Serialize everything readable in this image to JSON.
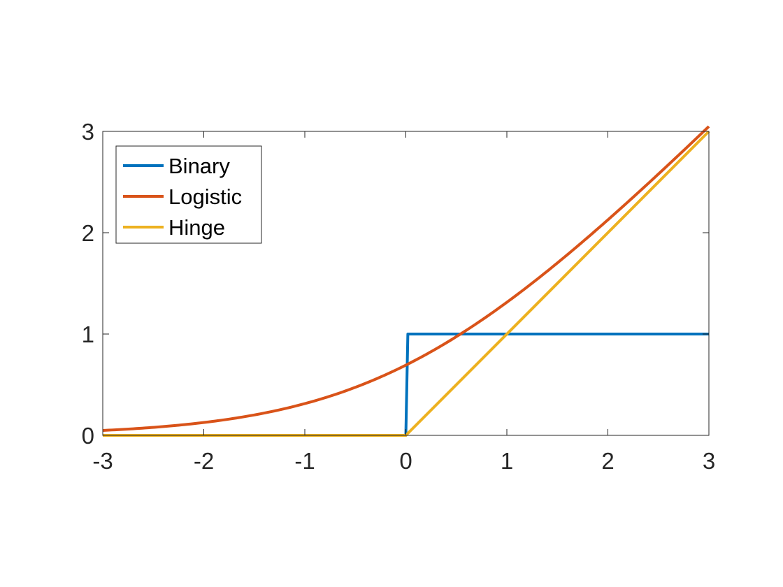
{
  "chart_data": {
    "type": "line",
    "title": "",
    "xlabel": "",
    "ylabel": "",
    "xlim": [
      -3,
      3
    ],
    "ylim": [
      0,
      3
    ],
    "xticks": [
      -3,
      -2,
      -1,
      0,
      1,
      2,
      3
    ],
    "yticks": [
      0,
      1,
      2,
      3
    ],
    "xtick_labels": [
      "-3",
      "-2",
      "-1",
      "0",
      "1",
      "2",
      "3"
    ],
    "ytick_labels": [
      "0",
      "1",
      "2",
      "3"
    ],
    "grid": false,
    "legend": {
      "position": "top-left"
    },
    "series": [
      {
        "name": "Binary",
        "color": "#0072BD",
        "x": [
          -3,
          0,
          0.02,
          3
        ],
        "y": [
          0,
          0,
          1,
          1
        ]
      },
      {
        "name": "Logistic",
        "color": "#D95319",
        "x": [
          -3,
          -2.5,
          -2,
          -1.5,
          -1,
          -0.5,
          0,
          0.5,
          1,
          1.5,
          2,
          2.5,
          3
        ],
        "y": [
          0.049,
          0.079,
          0.127,
          0.201,
          0.313,
          0.474,
          0.693,
          0.974,
          1.313,
          1.701,
          2.127,
          2.579,
          3.049
        ]
      },
      {
        "name": "Hinge",
        "color": "#EDB120",
        "x": [
          -3,
          0,
          3
        ],
        "y": [
          0,
          0,
          3
        ]
      }
    ]
  }
}
